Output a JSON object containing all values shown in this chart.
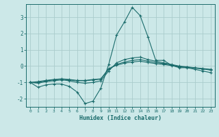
{
  "xlabel": "Humidex (Indice chaleur)",
  "background_color": "#cce8e8",
  "grid_color": "#aacccc",
  "line_color": "#1a6b6b",
  "xlim": [
    -0.5,
    23.5
  ],
  "ylim": [
    -2.5,
    3.8
  ],
  "yticks": [
    -2,
    -1,
    0,
    1,
    2,
    3
  ],
  "xticks": [
    0,
    1,
    2,
    3,
    4,
    5,
    6,
    7,
    8,
    9,
    10,
    11,
    12,
    13,
    14,
    15,
    16,
    17,
    18,
    19,
    20,
    21,
    22,
    23
  ],
  "series": [
    {
      "x": [
        0,
        1,
        2,
        3,
        4,
        5,
        6,
        7,
        8,
        9,
        10,
        11,
        12,
        13,
        14,
        15,
        16,
        17,
        18,
        19,
        20,
        21,
        22,
        23
      ],
      "y": [
        -1.0,
        -1.3,
        -1.15,
        -1.1,
        -1.1,
        -1.25,
        -1.6,
        -2.3,
        -2.15,
        -1.35,
        0.1,
        1.9,
        2.7,
        3.6,
        3.1,
        1.8,
        0.35,
        0.35,
        0.05,
        -0.1,
        -0.1,
        -0.2,
        -0.3,
        -0.4
      ]
    },
    {
      "x": [
        0,
        1,
        2,
        3,
        4,
        5,
        6,
        7,
        8,
        9,
        10,
        11,
        12,
        13,
        14,
        15,
        16,
        17,
        18,
        19,
        20,
        21,
        22,
        23
      ],
      "y": [
        -1.0,
        -1.05,
        -0.95,
        -0.9,
        -0.85,
        -0.9,
        -1.0,
        -1.05,
        -1.0,
        -0.9,
        -0.3,
        0.2,
        0.4,
        0.5,
        0.55,
        0.4,
        0.3,
        0.2,
        0.1,
        0.0,
        -0.05,
        -0.1,
        -0.15,
        -0.2
      ]
    },
    {
      "x": [
        0,
        1,
        2,
        3,
        4,
        5,
        6,
        7,
        8,
        9,
        10,
        11,
        12,
        13,
        14,
        15,
        16,
        17,
        18,
        19,
        20,
        21,
        22,
        23
      ],
      "y": [
        -1.0,
        -1.0,
        -0.9,
        -0.85,
        -0.8,
        -0.85,
        -0.9,
        -0.9,
        -0.85,
        -0.8,
        -0.2,
        0.1,
        0.25,
        0.35,
        0.4,
        0.3,
        0.22,
        0.15,
        0.07,
        -0.03,
        -0.07,
        -0.12,
        -0.17,
        -0.25
      ]
    },
    {
      "x": [
        0,
        1,
        2,
        3,
        4,
        5,
        6,
        7,
        8,
        9,
        10,
        11,
        12,
        13,
        14,
        15,
        16,
        17,
        18,
        19,
        20,
        21,
        22,
        23
      ],
      "y": [
        -1.0,
        -0.95,
        -0.88,
        -0.82,
        -0.78,
        -0.82,
        -0.88,
        -0.88,
        -0.82,
        -0.78,
        -0.15,
        0.05,
        0.18,
        0.25,
        0.3,
        0.22,
        0.15,
        0.1,
        0.03,
        -0.05,
        -0.08,
        -0.12,
        -0.17,
        -0.22
      ]
    }
  ]
}
